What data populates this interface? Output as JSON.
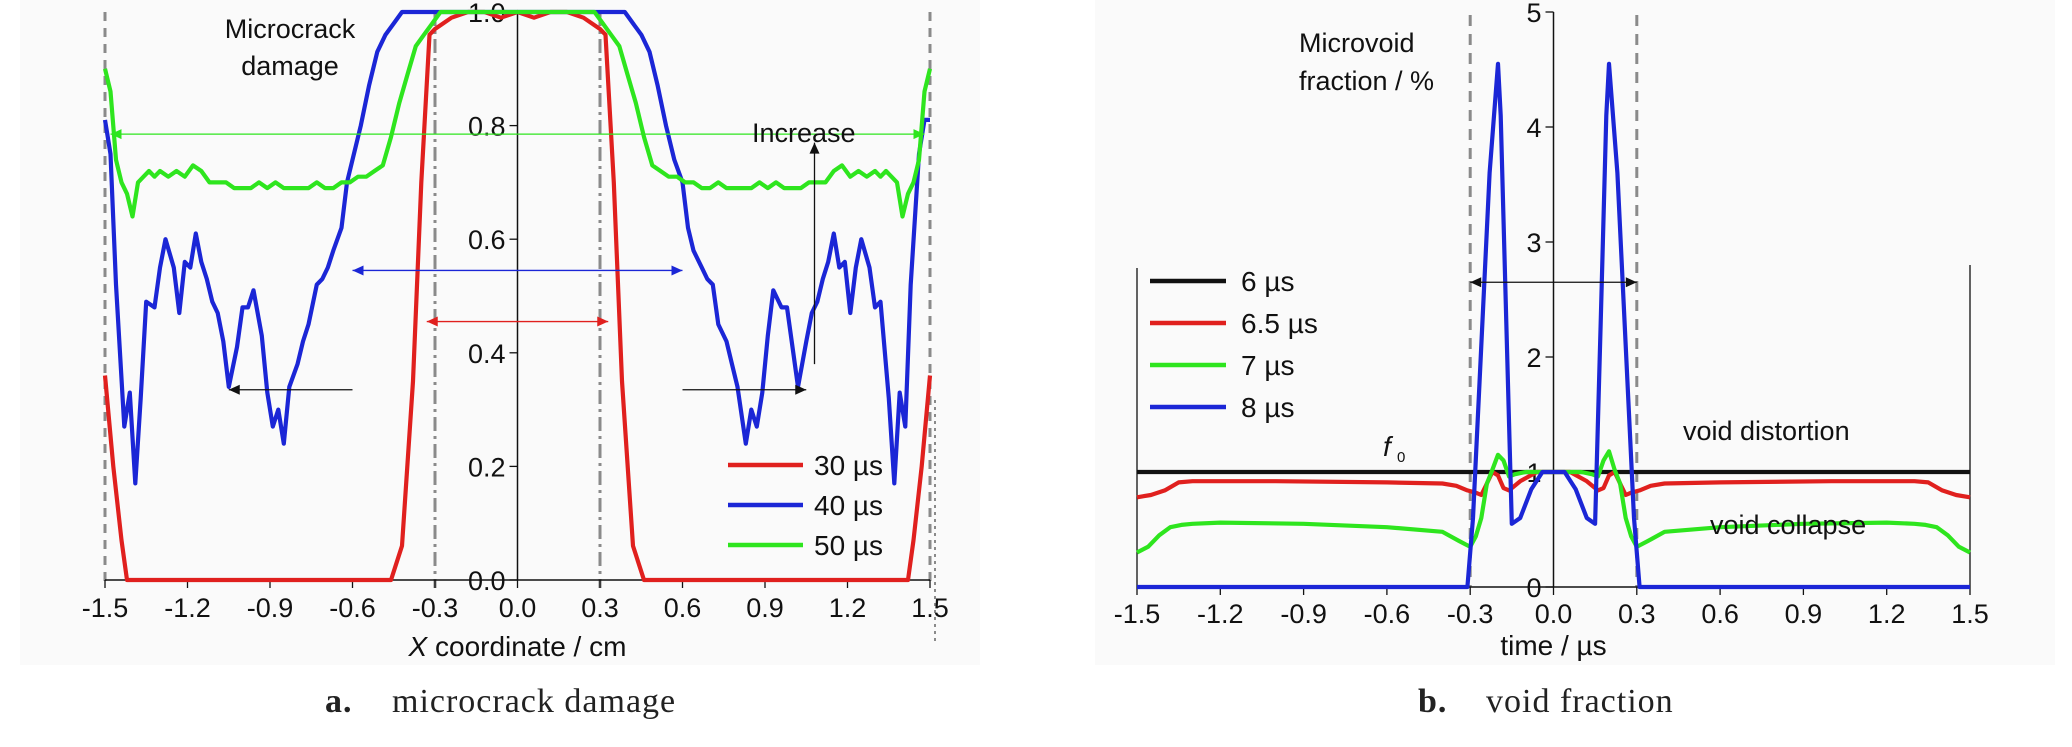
{
  "chart_data": [
    {
      "type": "line",
      "panel_label": "a.",
      "caption": "microcrack damage",
      "title": "",
      "ylabel_lines": [
        "Microcrack",
        "damage"
      ],
      "xlabel_var": "X",
      "xlabel_rest": " coordinate / cm",
      "xlim": [
        -1.5,
        1.5
      ],
      "ylim": [
        0,
        1.0
      ],
      "x_ticks": [
        -1.5,
        -1.2,
        -0.9,
        -0.6,
        -0.3,
        0.0,
        0.3,
        0.6,
        0.9,
        1.2,
        1.5
      ],
      "x_tick_labels": [
        "-1.5",
        "-1.2",
        "-0.9",
        "-0.6",
        "-0.3",
        "0.0",
        "0.3",
        "0.6",
        "0.9",
        "1.2",
        "1.5"
      ],
      "y_ticks": [
        0.0,
        0.2,
        0.4,
        0.6,
        0.8,
        1.0
      ],
      "y_tick_labels": [
        "0.0",
        "0.2",
        "0.4",
        "0.6",
        "0.8",
        "1.0"
      ],
      "legend_position": "bottom-right",
      "annotation": "Increase",
      "series": [
        {
          "name": "30 µs",
          "color": "#e0201e",
          "x": [
            -1.5,
            -1.47,
            -1.44,
            -1.42,
            -1.3,
            -0.6,
            -0.46,
            -0.42,
            -0.38,
            -0.35,
            -0.32,
            -0.3,
            -0.24,
            -0.18,
            -0.12,
            -0.06,
            0.0,
            0.06,
            0.12,
            0.18,
            0.24,
            0.3,
            0.32,
            0.35,
            0.38,
            0.42,
            0.46,
            0.6,
            1.3,
            1.42,
            1.44,
            1.47,
            1.5
          ],
          "y": [
            0.36,
            0.2,
            0.07,
            0.0,
            0.0,
            0.0,
            0.0,
            0.06,
            0.35,
            0.7,
            0.96,
            0.97,
            0.99,
            1.0,
            1.0,
            0.99,
            1.0,
            0.99,
            1.0,
            1.0,
            0.99,
            0.97,
            0.96,
            0.7,
            0.35,
            0.06,
            0.0,
            0.0,
            0.0,
            0.0,
            0.07,
            0.2,
            0.36
          ]
        },
        {
          "name": "40 µs",
          "color": "#1b26d6",
          "x": [
            -1.5,
            -1.48,
            -1.46,
            -1.43,
            -1.41,
            -1.39,
            -1.37,
            -1.35,
            -1.32,
            -1.3,
            -1.28,
            -1.25,
            -1.23,
            -1.21,
            -1.19,
            -1.17,
            -1.15,
            -1.13,
            -1.11,
            -1.09,
            -1.07,
            -1.05,
            -1.02,
            -1.0,
            -0.98,
            -0.96,
            -0.93,
            -0.91,
            -0.89,
            -0.87,
            -0.85,
            -0.83,
            -0.8,
            -0.78,
            -0.76,
            -0.73,
            -0.71,
            -0.69,
            -0.67,
            -0.64,
            -0.62,
            -0.6,
            -0.57,
            -0.54,
            -0.51,
            -0.48,
            -0.45,
            -0.42,
            -0.39,
            -0.36,
            -0.33,
            -0.3,
            -0.25,
            -0.2,
            -0.15,
            -0.1,
            -0.05,
            0.0,
            0.05,
            0.1,
            0.15,
            0.2,
            0.25,
            0.3,
            0.33,
            0.36,
            0.39,
            0.42,
            0.45,
            0.48,
            0.51,
            0.54,
            0.57,
            0.6,
            0.62,
            0.64,
            0.67,
            0.69,
            0.71,
            0.73,
            0.76,
            0.78,
            0.8,
            0.83,
            0.85,
            0.87,
            0.89,
            0.91,
            0.93,
            0.96,
            0.98,
            1.0,
            1.02,
            1.05,
            1.07,
            1.09,
            1.11,
            1.13,
            1.15,
            1.17,
            1.19,
            1.21,
            1.23,
            1.25,
            1.28,
            1.3,
            1.32,
            1.35,
            1.37,
            1.39,
            1.41,
            1.43,
            1.46,
            1.48,
            1.5
          ],
          "y": [
            0.81,
            0.75,
            0.52,
            0.27,
            0.33,
            0.17,
            0.32,
            0.49,
            0.48,
            0.55,
            0.6,
            0.55,
            0.47,
            0.56,
            0.55,
            0.61,
            0.56,
            0.53,
            0.49,
            0.47,
            0.42,
            0.34,
            0.41,
            0.48,
            0.48,
            0.51,
            0.43,
            0.33,
            0.27,
            0.3,
            0.24,
            0.34,
            0.38,
            0.42,
            0.45,
            0.52,
            0.53,
            0.55,
            0.58,
            0.62,
            0.7,
            0.74,
            0.8,
            0.87,
            0.93,
            0.96,
            0.98,
            1.0,
            1.0,
            1.0,
            1.0,
            1.0,
            1.0,
            1.0,
            1.0,
            1.0,
            1.0,
            1.0,
            1.0,
            1.0,
            1.0,
            1.0,
            1.0,
            1.0,
            1.0,
            1.0,
            1.0,
            0.98,
            0.96,
            0.93,
            0.87,
            0.8,
            0.74,
            0.7,
            0.62,
            0.58,
            0.55,
            0.53,
            0.52,
            0.45,
            0.42,
            0.38,
            0.34,
            0.24,
            0.3,
            0.27,
            0.33,
            0.43,
            0.51,
            0.48,
            0.48,
            0.41,
            0.34,
            0.42,
            0.47,
            0.49,
            0.53,
            0.56,
            0.61,
            0.55,
            0.56,
            0.47,
            0.55,
            0.6,
            0.55,
            0.48,
            0.49,
            0.32,
            0.17,
            0.33,
            0.27,
            0.52,
            0.75,
            0.81,
            0.81
          ]
        },
        {
          "name": "50 µs",
          "color": "#2ee51e",
          "x": [
            -1.5,
            -1.48,
            -1.46,
            -1.44,
            -1.42,
            -1.4,
            -1.38,
            -1.36,
            -1.34,
            -1.32,
            -1.3,
            -1.27,
            -1.24,
            -1.21,
            -1.18,
            -1.15,
            -1.12,
            -1.09,
            -1.06,
            -1.03,
            -1.0,
            -0.97,
            -0.94,
            -0.91,
            -0.88,
            -0.85,
            -0.82,
            -0.79,
            -0.76,
            -0.73,
            -0.7,
            -0.67,
            -0.64,
            -0.61,
            -0.58,
            -0.55,
            -0.52,
            -0.49,
            -0.46,
            -0.43,
            -0.4,
            -0.37,
            -0.34,
            -0.31,
            -0.28,
            -0.25,
            -0.2,
            -0.1,
            0.0,
            0.1,
            0.2,
            0.25,
            0.28,
            0.31,
            0.34,
            0.37,
            0.4,
            0.43,
            0.46,
            0.49,
            0.52,
            0.55,
            0.58,
            0.61,
            0.64,
            0.67,
            0.7,
            0.73,
            0.76,
            0.79,
            0.82,
            0.85,
            0.88,
            0.91,
            0.94,
            0.97,
            1.0,
            1.03,
            1.06,
            1.09,
            1.12,
            1.15,
            1.18,
            1.21,
            1.24,
            1.27,
            1.3,
            1.32,
            1.34,
            1.36,
            1.38,
            1.4,
            1.42,
            1.44,
            1.46,
            1.48,
            1.5
          ],
          "y": [
            0.9,
            0.86,
            0.74,
            0.7,
            0.68,
            0.64,
            0.7,
            0.71,
            0.72,
            0.71,
            0.72,
            0.71,
            0.72,
            0.71,
            0.73,
            0.72,
            0.7,
            0.7,
            0.7,
            0.69,
            0.69,
            0.69,
            0.7,
            0.69,
            0.7,
            0.69,
            0.69,
            0.69,
            0.69,
            0.7,
            0.69,
            0.69,
            0.7,
            0.7,
            0.71,
            0.71,
            0.72,
            0.73,
            0.78,
            0.84,
            0.89,
            0.94,
            0.96,
            0.98,
            1.0,
            1.0,
            1.0,
            1.0,
            1.0,
            1.0,
            1.0,
            1.0,
            1.0,
            0.98,
            0.96,
            0.94,
            0.89,
            0.84,
            0.78,
            0.73,
            0.72,
            0.71,
            0.71,
            0.7,
            0.7,
            0.69,
            0.69,
            0.7,
            0.69,
            0.69,
            0.69,
            0.69,
            0.7,
            0.69,
            0.7,
            0.69,
            0.69,
            0.69,
            0.7,
            0.7,
            0.7,
            0.72,
            0.73,
            0.71,
            0.72,
            0.71,
            0.72,
            0.71,
            0.72,
            0.71,
            0.7,
            0.64,
            0.68,
            0.7,
            0.74,
            0.86,
            0.9
          ]
        }
      ]
    },
    {
      "type": "line",
      "panel_label": "b.",
      "caption": "void fraction",
      "title": "",
      "ylabel_lines": [
        "Microvoid",
        "fraction / %"
      ],
      "xlabel": "time / µs",
      "xlim": [
        -1.5,
        1.5
      ],
      "ylim": [
        0,
        5
      ],
      "x_ticks": [
        -1.5,
        -1.2,
        -0.9,
        -0.6,
        -0.3,
        0.0,
        0.3,
        0.6,
        0.9,
        1.2,
        1.5
      ],
      "x_tick_labels": [
        "-1.5",
        "-1.2",
        "-0.9",
        "-0.6",
        "-0.3",
        "0.0",
        "0.3",
        "0.6",
        "0.9",
        "1.2",
        "1.5"
      ],
      "y_ticks": [
        0,
        1,
        2,
        3,
        4,
        5
      ],
      "y_tick_labels": [
        "0",
        "1",
        "2",
        "3",
        "4",
        "5"
      ],
      "legend_position": "top-left",
      "annotations": [
        "void distortion",
        "void collapse"
      ],
      "f0_label": "f",
      "f0_sub": "0",
      "series": [
        {
          "name": "6 µs",
          "color": "#111111",
          "x": [
            -1.5,
            1.5
          ],
          "y": [
            1.0,
            1.0
          ]
        },
        {
          "name": "6.5 µs",
          "color": "#e0201e",
          "x": [
            -1.5,
            -1.45,
            -1.4,
            -1.35,
            -1.3,
            -1.0,
            -0.6,
            -0.4,
            -0.35,
            -0.31,
            -0.28,
            -0.26,
            -0.24,
            -0.22,
            -0.2,
            -0.18,
            -0.16,
            -0.12,
            -0.06,
            0.0,
            0.06,
            0.12,
            0.16,
            0.18,
            0.2,
            0.22,
            0.24,
            0.26,
            0.28,
            0.31,
            0.35,
            0.4,
            0.6,
            1.0,
            1.3,
            1.35,
            1.4,
            1.45,
            1.5
          ],
          "y": [
            0.78,
            0.8,
            0.84,
            0.91,
            0.92,
            0.92,
            0.91,
            0.9,
            0.88,
            0.84,
            0.82,
            0.8,
            0.9,
            1.0,
            0.97,
            0.86,
            0.84,
            0.92,
            1.0,
            1.0,
            1.0,
            0.92,
            0.84,
            0.86,
            0.97,
            1.0,
            0.9,
            0.8,
            0.82,
            0.84,
            0.88,
            0.9,
            0.91,
            0.92,
            0.92,
            0.91,
            0.84,
            0.8,
            0.78
          ]
        },
        {
          "name": "7 µs",
          "color": "#2ee51e",
          "x": [
            -1.5,
            -1.46,
            -1.42,
            -1.38,
            -1.34,
            -1.3,
            -1.2,
            -0.9,
            -0.6,
            -0.4,
            -0.34,
            -0.3,
            -0.28,
            -0.26,
            -0.24,
            -0.22,
            -0.2,
            -0.18,
            -0.16,
            -0.14,
            -0.1,
            -0.05,
            0.0,
            0.05,
            0.1,
            0.14,
            0.16,
            0.18,
            0.2,
            0.22,
            0.24,
            0.26,
            0.28,
            0.3,
            0.34,
            0.4,
            0.6,
            0.9,
            1.2,
            1.3,
            1.34,
            1.38,
            1.42,
            1.46,
            1.5
          ],
          "y": [
            0.3,
            0.35,
            0.45,
            0.52,
            0.54,
            0.55,
            0.56,
            0.55,
            0.52,
            0.48,
            0.4,
            0.35,
            0.44,
            0.6,
            0.9,
            1.02,
            1.15,
            1.1,
            0.96,
            0.98,
            1.0,
            1.0,
            1.0,
            1.0,
            1.0,
            0.98,
            0.96,
            1.1,
            1.18,
            1.02,
            0.9,
            0.6,
            0.44,
            0.35,
            0.4,
            0.48,
            0.52,
            0.55,
            0.56,
            0.55,
            0.54,
            0.52,
            0.45,
            0.35,
            0.3
          ]
        },
        {
          "name": "8 µs",
          "color": "#1b26d6",
          "x": [
            -1.5,
            -0.31,
            -0.29,
            -0.26,
            -0.23,
            -0.2,
            -0.19,
            -0.17,
            -0.15,
            -0.12,
            -0.08,
            -0.04,
            0.0,
            0.04,
            0.08,
            0.12,
            0.15,
            0.17,
            0.19,
            0.2,
            0.23,
            0.26,
            0.29,
            0.31,
            1.5
          ],
          "y": [
            0.0,
            0.0,
            0.6,
            2.1,
            3.6,
            4.55,
            4.1,
            2.3,
            0.55,
            0.6,
            0.85,
            1.0,
            1.0,
            1.0,
            0.85,
            0.6,
            0.55,
            2.3,
            4.1,
            4.55,
            3.6,
            2.1,
            0.6,
            0.0,
            0.0
          ]
        }
      ]
    }
  ]
}
